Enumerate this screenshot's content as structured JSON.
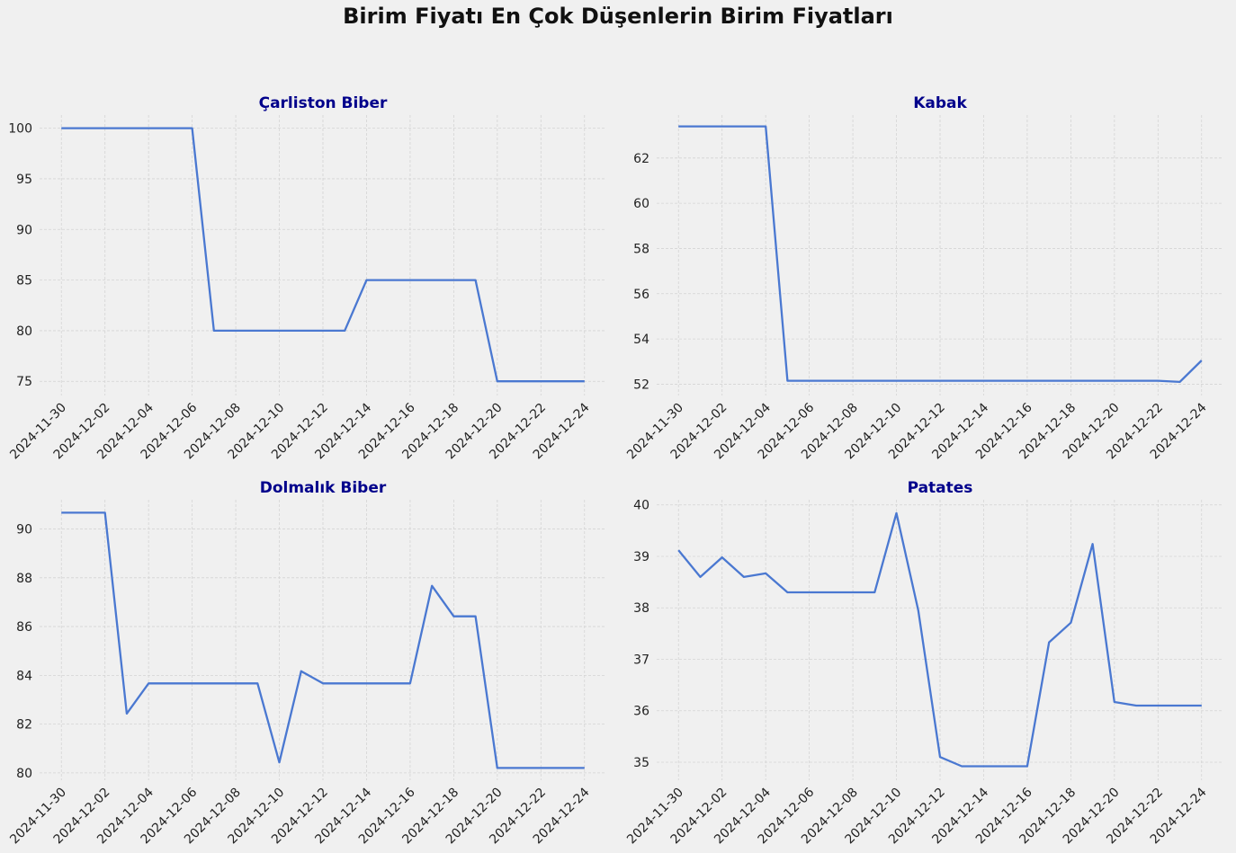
{
  "figure": {
    "title": "Birim Fiyatı En Çok Düşenlerin Birim Fiyatları",
    "line_color": "#4a78d1",
    "title_color": "#00008b",
    "background": "#f0f0f0"
  },
  "chart_data": [
    {
      "type": "line",
      "title": "Çarliston Biber",
      "xlabel": "",
      "ylabel": "",
      "x_type": "date",
      "xlim": [
        "2024-11-29",
        "2024-12-25"
      ],
      "ylim": [
        73.6,
        101.3
      ],
      "xticks": [
        "2024-11-30",
        "2024-12-02",
        "2024-12-04",
        "2024-12-06",
        "2024-12-08",
        "2024-12-10",
        "2024-12-12",
        "2024-12-14",
        "2024-12-16",
        "2024-12-18",
        "2024-12-20",
        "2024-12-22",
        "2024-12-24"
      ],
      "yticks": [
        75,
        80,
        85,
        90,
        95,
        100
      ],
      "grid": true,
      "series": [
        {
          "x": [
            "2024-11-30",
            "2024-12-01",
            "2024-12-02",
            "2024-12-03",
            "2024-12-04",
            "2024-12-05",
            "2024-12-06",
            "2024-12-07",
            "2024-12-08",
            "2024-12-09",
            "2024-12-10",
            "2024-12-11",
            "2024-12-12",
            "2024-12-13",
            "2024-12-14",
            "2024-12-15",
            "2024-12-16",
            "2024-12-17",
            "2024-12-18",
            "2024-12-19",
            "2024-12-20",
            "2024-12-21",
            "2024-12-22",
            "2024-12-23",
            "2024-12-24"
          ],
          "values": [
            100,
            100,
            100,
            100,
            100,
            100,
            100,
            80,
            80,
            80,
            80,
            80,
            80,
            80,
            85,
            85,
            85,
            85,
            85,
            85,
            75,
            75,
            75,
            75,
            75
          ]
        }
      ]
    },
    {
      "type": "line",
      "title": "Kabak",
      "xlabel": "",
      "ylabel": "",
      "x_type": "date",
      "xlim": [
        "2024-11-29",
        "2024-12-25"
      ],
      "ylim": [
        51.5,
        63.9
      ],
      "xticks": [
        "2024-11-30",
        "2024-12-02",
        "2024-12-04",
        "2024-12-06",
        "2024-12-08",
        "2024-12-10",
        "2024-12-12",
        "2024-12-14",
        "2024-12-16",
        "2024-12-18",
        "2024-12-20",
        "2024-12-22",
        "2024-12-24"
      ],
      "yticks": [
        52,
        54,
        56,
        58,
        60,
        62
      ],
      "grid": true,
      "series": [
        {
          "x": [
            "2024-11-30",
            "2024-12-01",
            "2024-12-02",
            "2024-12-03",
            "2024-12-04",
            "2024-12-05",
            "2024-12-06",
            "2024-12-07",
            "2024-12-08",
            "2024-12-09",
            "2024-12-10",
            "2024-12-11",
            "2024-12-12",
            "2024-12-13",
            "2024-12-14",
            "2024-12-15",
            "2024-12-16",
            "2024-12-17",
            "2024-12-18",
            "2024-12-19",
            "2024-12-20",
            "2024-12-21",
            "2024-12-22",
            "2024-12-23",
            "2024-12-24"
          ],
          "values": [
            63.4,
            63.4,
            63.4,
            63.4,
            63.4,
            52.15,
            52.15,
            52.15,
            52.15,
            52.15,
            52.15,
            52.15,
            52.15,
            52.15,
            52.15,
            52.15,
            52.15,
            52.15,
            52.15,
            52.15,
            52.15,
            52.15,
            52.15,
            52.1,
            53.05
          ]
        }
      ]
    },
    {
      "type": "line",
      "title": "Dolmalık Biber",
      "xlabel": "",
      "ylabel": "",
      "x_type": "date",
      "xlim": [
        "2024-11-29",
        "2024-12-25"
      ],
      "ylim": [
        79.7,
        91.2
      ],
      "xticks": [
        "2024-11-30",
        "2024-12-02",
        "2024-12-04",
        "2024-12-06",
        "2024-12-08",
        "2024-12-10",
        "2024-12-12",
        "2024-12-14",
        "2024-12-16",
        "2024-12-18",
        "2024-12-20",
        "2024-12-22",
        "2024-12-24"
      ],
      "yticks": [
        80,
        82,
        84,
        86,
        88,
        90
      ],
      "grid": true,
      "series": [
        {
          "x": [
            "2024-11-30",
            "2024-12-01",
            "2024-12-02",
            "2024-12-03",
            "2024-12-04",
            "2024-12-05",
            "2024-12-06",
            "2024-12-07",
            "2024-12-08",
            "2024-12-09",
            "2024-12-10",
            "2024-12-11",
            "2024-12-12",
            "2024-12-13",
            "2024-12-14",
            "2024-12-15",
            "2024-12-16",
            "2024-12-17",
            "2024-12-18",
            "2024-12-19",
            "2024-12-20",
            "2024-12-21",
            "2024-12-22",
            "2024-12-23",
            "2024-12-24"
          ],
          "values": [
            90.67,
            90.67,
            90.67,
            82.43,
            83.67,
            83.67,
            83.67,
            83.67,
            83.67,
            83.67,
            80.43,
            84.17,
            83.67,
            83.67,
            83.67,
            83.67,
            83.67,
            87.67,
            86.42,
            86.42,
            80.2,
            80.2,
            80.2,
            80.2,
            80.2
          ]
        }
      ]
    },
    {
      "type": "line",
      "title": "Patates",
      "xlabel": "",
      "ylabel": "",
      "x_type": "date",
      "xlim": [
        "2024-11-29",
        "2024-12-25"
      ],
      "ylim": [
        34.65,
        40.1
      ],
      "xticks": [
        "2024-11-30",
        "2024-12-02",
        "2024-12-04",
        "2024-12-06",
        "2024-12-08",
        "2024-12-10",
        "2024-12-12",
        "2024-12-14",
        "2024-12-16",
        "2024-12-18",
        "2024-12-20",
        "2024-12-22",
        "2024-12-24"
      ],
      "yticks": [
        35,
        36,
        37,
        38,
        39,
        40
      ],
      "grid": true,
      "series": [
        {
          "x": [
            "2024-11-30",
            "2024-12-01",
            "2024-12-02",
            "2024-12-03",
            "2024-12-04",
            "2024-12-05",
            "2024-12-06",
            "2024-12-07",
            "2024-12-08",
            "2024-12-09",
            "2024-12-10",
            "2024-12-11",
            "2024-12-12",
            "2024-12-13",
            "2024-12-14",
            "2024-12-15",
            "2024-12-16",
            "2024-12-17",
            "2024-12-18",
            "2024-12-19",
            "2024-12-20",
            "2024-12-21",
            "2024-12-22",
            "2024-12-23",
            "2024-12-24"
          ],
          "values": [
            39.12,
            38.6,
            38.98,
            38.6,
            38.67,
            38.3,
            38.3,
            38.3,
            38.3,
            38.3,
            39.84,
            37.95,
            35.1,
            34.92,
            34.92,
            34.92,
            34.92,
            37.33,
            37.71,
            39.24,
            36.17,
            36.1,
            36.1,
            36.1,
            36.1
          ]
        }
      ]
    }
  ]
}
